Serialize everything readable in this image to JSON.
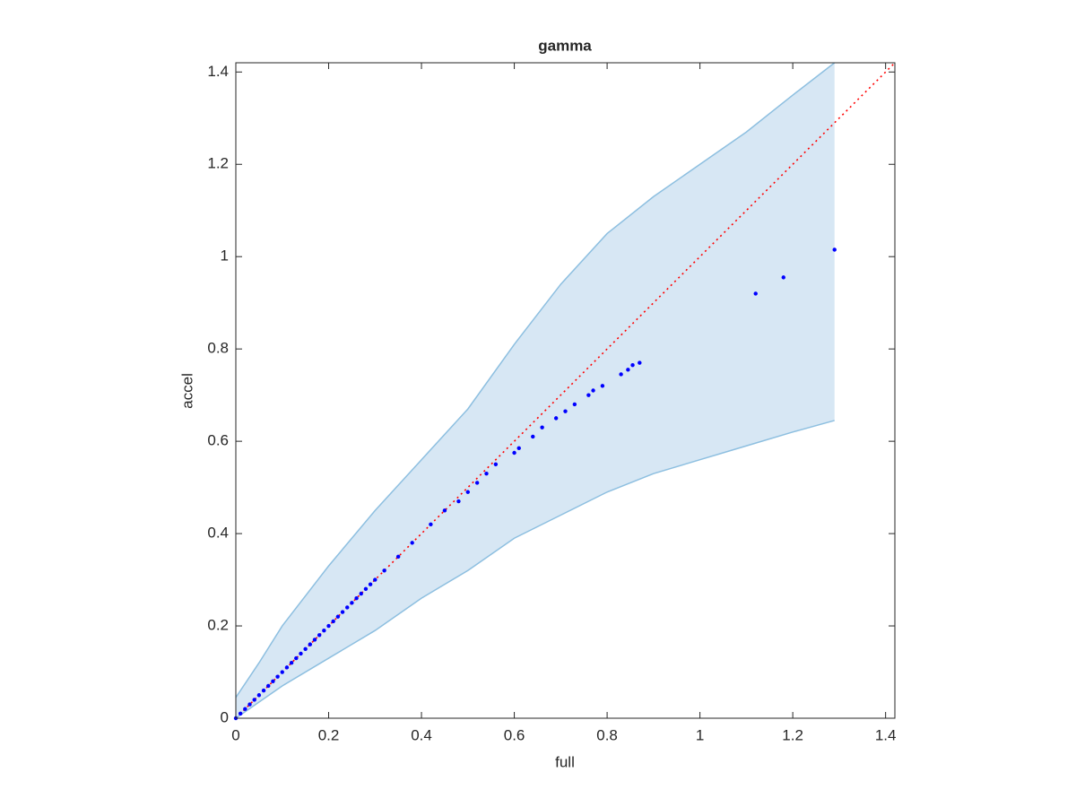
{
  "chart_data": {
    "type": "scatter",
    "title": "gamma",
    "x_label": "full",
    "y_label": "accel",
    "xlim": [
      0,
      1.42
    ],
    "ylim": [
      0,
      1.42
    ],
    "xticks": [
      0,
      0.2,
      0.4,
      0.6,
      0.8,
      1,
      1.2,
      1.4
    ],
    "yticks": [
      0,
      0.2,
      0.4,
      0.6,
      0.8,
      1,
      1.2,
      1.4
    ],
    "band": {
      "color": "#d7e7f4",
      "edge_color": "#8dbfe0",
      "x": [
        0,
        0.05,
        0.1,
        0.2,
        0.3,
        0.4,
        0.5,
        0.6,
        0.7,
        0.8,
        0.9,
        1.0,
        1.1,
        1.2,
        1.29
      ],
      "upper": [
        0.045,
        0.12,
        0.2,
        0.33,
        0.45,
        0.56,
        0.67,
        0.81,
        0.94,
        1.05,
        1.13,
        1.2,
        1.27,
        1.35,
        1.42
      ],
      "lower": [
        0,
        0.035,
        0.07,
        0.13,
        0.19,
        0.26,
        0.32,
        0.39,
        0.44,
        0.49,
        0.53,
        0.56,
        0.59,
        0.62,
        0.645
      ]
    },
    "reference": {
      "color": "#ff0000",
      "x": [
        0,
        1.42
      ],
      "y": [
        0,
        1.42
      ]
    },
    "points": {
      "color": "#0000ff",
      "x": [
        0,
        0.01,
        0.02,
        0.03,
        0.04,
        0.05,
        0.06,
        0.07,
        0.08,
        0.09,
        0.1,
        0.11,
        0.12,
        0.13,
        0.14,
        0.15,
        0.16,
        0.17,
        0.18,
        0.19,
        0.2,
        0.21,
        0.22,
        0.23,
        0.24,
        0.25,
        0.26,
        0.27,
        0.28,
        0.29,
        0.3,
        0.32,
        0.35,
        0.38,
        0.42,
        0.45,
        0.48,
        0.5,
        0.52,
        0.54,
        0.56,
        0.6,
        0.61,
        0.64,
        0.66,
        0.69,
        0.71,
        0.73,
        0.76,
        0.77,
        0.79,
        0.83,
        0.845,
        0.855,
        0.87,
        1.12,
        1.18,
        1.29
      ],
      "y": [
        0,
        0.01,
        0.02,
        0.03,
        0.04,
        0.05,
        0.06,
        0.07,
        0.08,
        0.09,
        0.1,
        0.11,
        0.12,
        0.13,
        0.14,
        0.15,
        0.16,
        0.17,
        0.18,
        0.19,
        0.2,
        0.21,
        0.22,
        0.23,
        0.24,
        0.25,
        0.26,
        0.27,
        0.28,
        0.29,
        0.3,
        0.32,
        0.35,
        0.38,
        0.42,
        0.45,
        0.47,
        0.49,
        0.51,
        0.53,
        0.55,
        0.575,
        0.585,
        0.61,
        0.63,
        0.65,
        0.665,
        0.68,
        0.7,
        0.71,
        0.72,
        0.745,
        0.755,
        0.765,
        0.77,
        0.92,
        0.955,
        1.015
      ]
    }
  }
}
